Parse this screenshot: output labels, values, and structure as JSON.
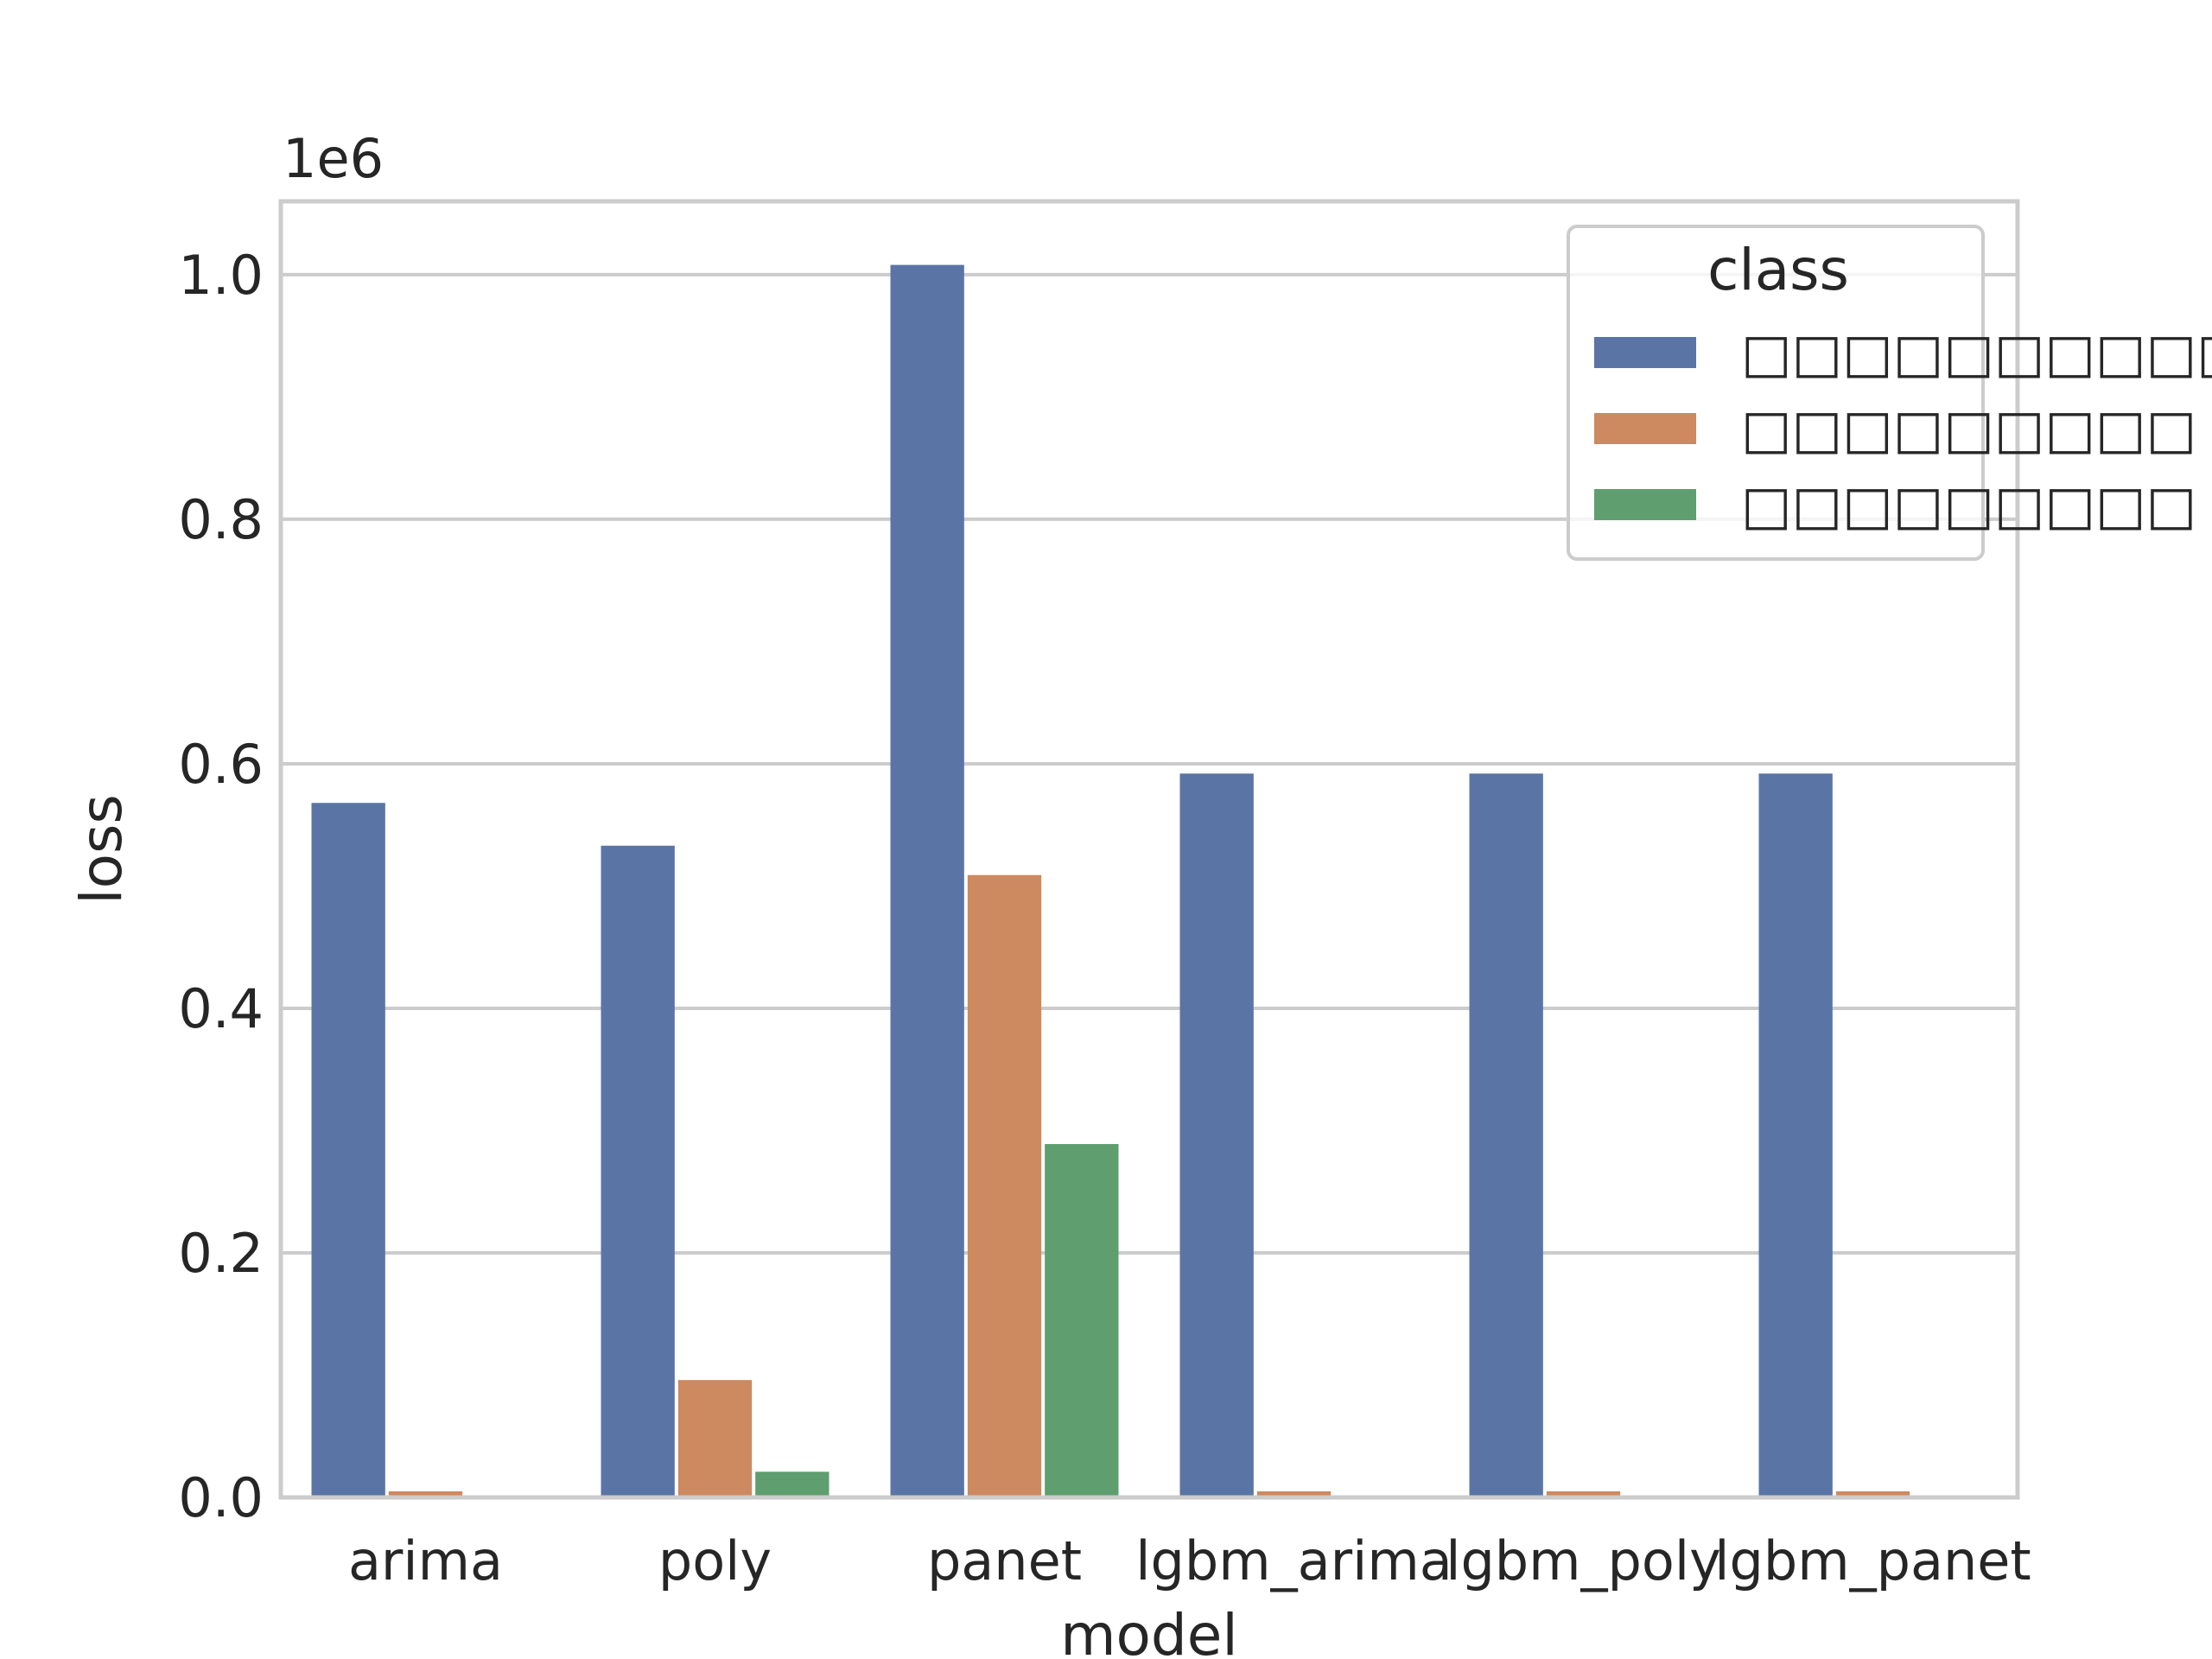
{
  "chart_data": {
    "type": "bar",
    "categories": [
      "arima",
      "poly",
      "panet",
      "lgbm_arima",
      "lgbm_poly",
      "lgbm_panet"
    ],
    "series": [
      {
        "name": "□□□□□□□□□□",
        "color": "#5a75a5",
        "values": [
          568000,
          533000,
          1008000,
          592000,
          592000,
          592000
        ]
      },
      {
        "name": "□□□□□□□□□",
        "color": "#cd8960",
        "values": [
          5000,
          96000,
          509000,
          5000,
          5000,
          5000
        ]
      },
      {
        "name": "□□□□□□□□□",
        "color": "#5f9e6e",
        "values": [
          0,
          21000,
          289000,
          0,
          0,
          0
        ]
      }
    ],
    "xlabel": "model",
    "ylabel": "loss",
    "offset_label": "1e6",
    "yticks": [
      "0.0",
      "0.2",
      "0.4",
      "0.6",
      "0.8",
      "1.0"
    ],
    "ytick_values": [
      0,
      200000,
      400000,
      600000,
      800000,
      1000000
    ],
    "ylim": [
      0,
      1060000
    ],
    "legend": {
      "title": "class",
      "position": "top-right"
    },
    "grid": true,
    "grid_color": "#cccccc",
    "axis_edge_color": "#cccccc"
  }
}
